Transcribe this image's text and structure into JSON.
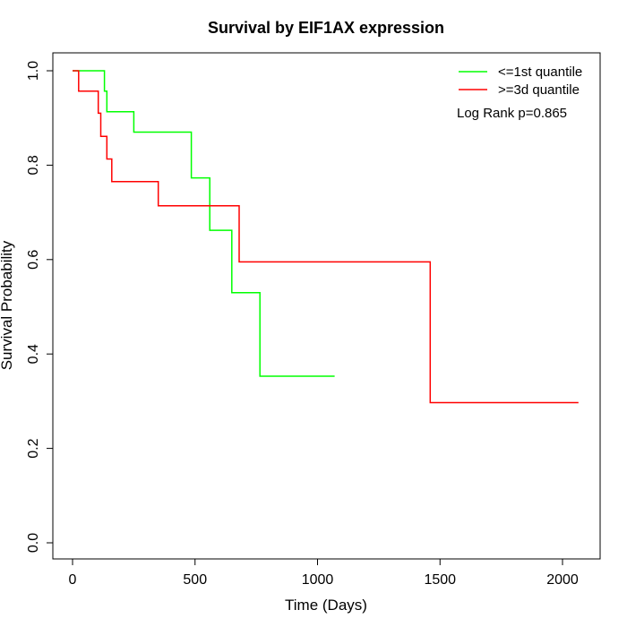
{
  "chart_data": {
    "type": "line",
    "title": "Survival by EIF1AX expression",
    "xlabel": "Time (Days)",
    "ylabel": "Survival Probability",
    "xlim": [
      0,
      2070
    ],
    "ylim": [
      0,
      1.0
    ],
    "x_ticks": [
      "0",
      "500",
      "1000",
      "1500",
      "2000"
    ],
    "y_ticks": [
      "0.0",
      "0.2",
      "0.4",
      "0.6",
      "0.8",
      "1.0"
    ],
    "legend_position": "top-right",
    "annotation": "Log Rank p=0.865",
    "series": [
      {
        "name": "<=1st quantile",
        "color": "#00ff00",
        "step_points": [
          [
            0,
            1.0
          ],
          [
            130,
            1.0
          ],
          [
            130,
            0.957
          ],
          [
            140,
            0.957
          ],
          [
            140,
            0.913
          ],
          [
            250,
            0.913
          ],
          [
            250,
            0.87
          ],
          [
            485,
            0.87
          ],
          [
            485,
            0.773
          ],
          [
            560,
            0.773
          ],
          [
            560,
            0.662
          ],
          [
            650,
            0.662
          ],
          [
            650,
            0.53
          ],
          [
            765,
            0.53
          ],
          [
            765,
            0.353
          ],
          [
            1070,
            0.353
          ]
        ]
      },
      {
        "name": ">=3d quantile",
        "color": "#ff0000",
        "step_points": [
          [
            0,
            1.0
          ],
          [
            25,
            1.0
          ],
          [
            25,
            0.957
          ],
          [
            105,
            0.957
          ],
          [
            105,
            0.91
          ],
          [
            115,
            0.91
          ],
          [
            115,
            0.861
          ],
          [
            140,
            0.861
          ],
          [
            140,
            0.813
          ],
          [
            160,
            0.813
          ],
          [
            160,
            0.765
          ],
          [
            350,
            0.765
          ],
          [
            350,
            0.714
          ],
          [
            680,
            0.714
          ],
          [
            680,
            0.595
          ],
          [
            1460,
            0.595
          ],
          [
            1460,
            0.297
          ],
          [
            2065,
            0.297
          ]
        ]
      }
    ]
  }
}
